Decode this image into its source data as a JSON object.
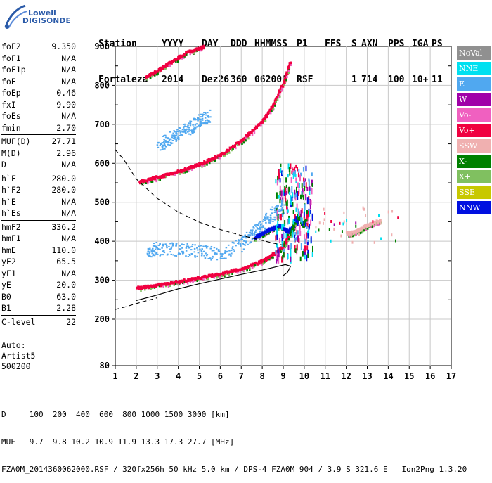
{
  "logo": {
    "line1": "Lowell",
    "line2": "DIGISONDE"
  },
  "header": {
    "row1": [
      "Station",
      "YYYY",
      "DAY",
      "DDD",
      "HHMMSS",
      "P1",
      "FFS",
      "S",
      "AXN",
      "PPS",
      "IGA",
      "PS"
    ],
    "row2": [
      "Fortaleza",
      "2014",
      "Dez26",
      "360",
      "062000",
      "RSF",
      "",
      "1",
      "714",
      "100",
      "10+",
      "11"
    ]
  },
  "params": [
    [
      {
        "name": "foF2",
        "value": "9.350"
      },
      {
        "name": "foF1",
        "value": "N/A"
      },
      {
        "name": "foF1p",
        "value": "N/A"
      },
      {
        "name": "foE",
        "value": "N/A"
      },
      {
        "name": "foEp",
        "value": "0.46"
      },
      {
        "name": "fxI",
        "value": "9.90"
      },
      {
        "name": "foEs",
        "value": "N/A"
      },
      {
        "name": "fmin",
        "value": "2.70"
      }
    ],
    [
      {
        "name": "MUF(D)",
        "value": "27.71"
      },
      {
        "name": "M(D)",
        "value": "2.96"
      },
      {
        "name": "D",
        "value": "N/A"
      }
    ],
    [
      {
        "name": "h`F",
        "value": "280.0"
      },
      {
        "name": "h`F2",
        "value": "280.0"
      },
      {
        "name": "h`E",
        "value": "N/A"
      },
      {
        "name": "h`Es",
        "value": "N/A"
      }
    ],
    [
      {
        "name": "hmF2",
        "value": "336.2"
      },
      {
        "name": "hmF1",
        "value": "N/A"
      },
      {
        "name": "hmE",
        "value": "110.0"
      },
      {
        "name": "yF2",
        "value": "65.5"
      },
      {
        "name": "yF1",
        "value": "N/A"
      },
      {
        "name": "yE",
        "value": "20.0"
      },
      {
        "name": "B0",
        "value": "63.0"
      },
      {
        "name": "B1",
        "value": "2.28"
      }
    ],
    [
      {
        "name": "C-level",
        "value": "22"
      }
    ]
  ],
  "auto": {
    "line1": "Auto:",
    "line2": "Artist5",
    "line3": "500200"
  },
  "legend": [
    {
      "label": "NoVal",
      "color": "#909090"
    },
    {
      "label": "NNE",
      "color": "#00e0f0"
    },
    {
      "label": "E",
      "color": "#50a8f0"
    },
    {
      "label": "W",
      "color": "#a000a8"
    },
    {
      "label": "Vo-",
      "color": "#f060c0"
    },
    {
      "label": "Vo+",
      "color": "#f00040"
    },
    {
      "label": "SSW",
      "color": "#f0b0b0"
    },
    {
      "label": "X-",
      "color": "#008000"
    },
    {
      "label": "X+",
      "color": "#80c060"
    },
    {
      "label": "SSE",
      "color": "#c8c800"
    },
    {
      "label": "NNW",
      "color": "#0010e0"
    }
  ],
  "footer": {
    "row1": "D     100  200  400  600  800 1000 1500 3000 [km]",
    "row2": "MUF   9.7  9.8 10.2 10.9 11.9 13.3 17.3 27.7 [MHz]",
    "row3": "FZA0M_2014360062000.RSF / 320fx256h 50 kHz 5.0 km / DPS-4 FZA0M 904 / 3.9 S 321.6 E   Ion2Png 1.3.20"
  },
  "chart_data": {
    "type": "scatter",
    "xlim": [
      1,
      17
    ],
    "ylim": [
      80,
      900
    ],
    "x_ticks": [
      "1",
      "2",
      "3",
      "4",
      "5",
      "6",
      "7",
      "8",
      "9",
      "10",
      "11",
      "12",
      "13",
      "14",
      "15",
      "16",
      "17"
    ],
    "y_ticks": [
      "900",
      "800",
      "700",
      "600",
      "500",
      "400",
      "300",
      "200",
      "80"
    ],
    "grid": true,
    "series": [
      {
        "name": "Vo+",
        "color": "#f00040",
        "points": [
          [
            2.0,
            280
          ],
          [
            3.0,
            288
          ],
          [
            4.0,
            297
          ],
          [
            5.0,
            306
          ],
          [
            6.0,
            317
          ],
          [
            7.0,
            330
          ],
          [
            8.0,
            350
          ],
          [
            8.6,
            370
          ],
          [
            9.0,
            390
          ],
          [
            9.2,
            410
          ]
        ]
      },
      {
        "name": "Vo+",
        "color": "#f00040",
        "points": [
          [
            2.1,
            553
          ],
          [
            3.0,
            565
          ],
          [
            4.0,
            580
          ],
          [
            5.0,
            598
          ],
          [
            6.0,
            623
          ],
          [
            7.0,
            660
          ],
          [
            8.0,
            710
          ],
          [
            8.5,
            750
          ],
          [
            9.0,
            810
          ],
          [
            9.3,
            860
          ]
        ]
      },
      {
        "name": "Vo+",
        "color": "#f00040",
        "points": [
          [
            2.4,
            820
          ],
          [
            3.0,
            838
          ],
          [
            3.6,
            860
          ],
          [
            4.4,
            885
          ],
          [
            5.2,
            900
          ]
        ]
      },
      {
        "name": "E",
        "color": "#50a8f0",
        "points": [
          [
            2.5,
            375
          ],
          [
            3.0,
            380
          ],
          [
            4.0,
            378
          ],
          [
            5.0,
            372
          ],
          [
            6.0,
            365
          ],
          [
            7.0,
            390
          ],
          [
            7.5,
            420
          ],
          [
            8.0,
            440
          ],
          [
            8.5,
            470
          ],
          [
            9.0,
            480
          ]
        ]
      },
      {
        "name": "E",
        "color": "#50a8f0",
        "points": [
          [
            3.0,
            640
          ],
          [
            3.5,
            660
          ],
          [
            4.0,
            675
          ],
          [
            4.5,
            690
          ],
          [
            5.0,
            708
          ],
          [
            5.5,
            720
          ]
        ]
      },
      {
        "name": "NNW",
        "color": "#0010e0",
        "points": [
          [
            7.6,
            410
          ],
          [
            8.0,
            420
          ],
          [
            8.3,
            430
          ],
          [
            8.8,
            440
          ],
          [
            9.2,
            425
          ],
          [
            9.5,
            440
          ]
        ]
      },
      {
        "name": "SSW",
        "color": "#f0b0b0",
        "points": [
          [
            12.0,
            420
          ],
          [
            12.3,
            423
          ],
          [
            12.6,
            430
          ],
          [
            12.9,
            440
          ],
          [
            13.2,
            445
          ],
          [
            13.6,
            455
          ]
        ]
      },
      {
        "name": "X-",
        "color": "#008000",
        "points": [
          [
            9.3,
            420
          ],
          [
            9.5,
            445
          ],
          [
            9.7,
            470
          ],
          [
            9.9,
            440
          ],
          [
            10.1,
            460
          ]
        ]
      }
    ],
    "profile_solid": [
      [
        2.0,
        248
      ],
      [
        3.0,
        262
      ],
      [
        4.0,
        278
      ],
      [
        5.0,
        291
      ],
      [
        6.0,
        303
      ],
      [
        7.0,
        315
      ],
      [
        8.0,
        326
      ],
      [
        8.7,
        335
      ],
      [
        9.1,
        340
      ],
      [
        9.35,
        336
      ],
      [
        9.2,
        320
      ],
      [
        9.0,
        312
      ]
    ],
    "profile_dashed": [
      [
        1.0,
        635
      ],
      [
        1.4,
        610
      ],
      [
        2.0,
        560
      ],
      [
        3.0,
        510
      ],
      [
        4.0,
        475
      ],
      [
        5.0,
        449
      ],
      [
        6.0,
        430
      ],
      [
        7.0,
        415
      ],
      [
        8.0,
        402
      ],
      [
        8.7,
        393
      ],
      [
        9.0,
        390
      ]
    ],
    "profile_dashed_low": [
      [
        1.0,
        225
      ],
      [
        1.5,
        232
      ],
      [
        2.0,
        240
      ],
      [
        3.0,
        255
      ]
    ]
  }
}
